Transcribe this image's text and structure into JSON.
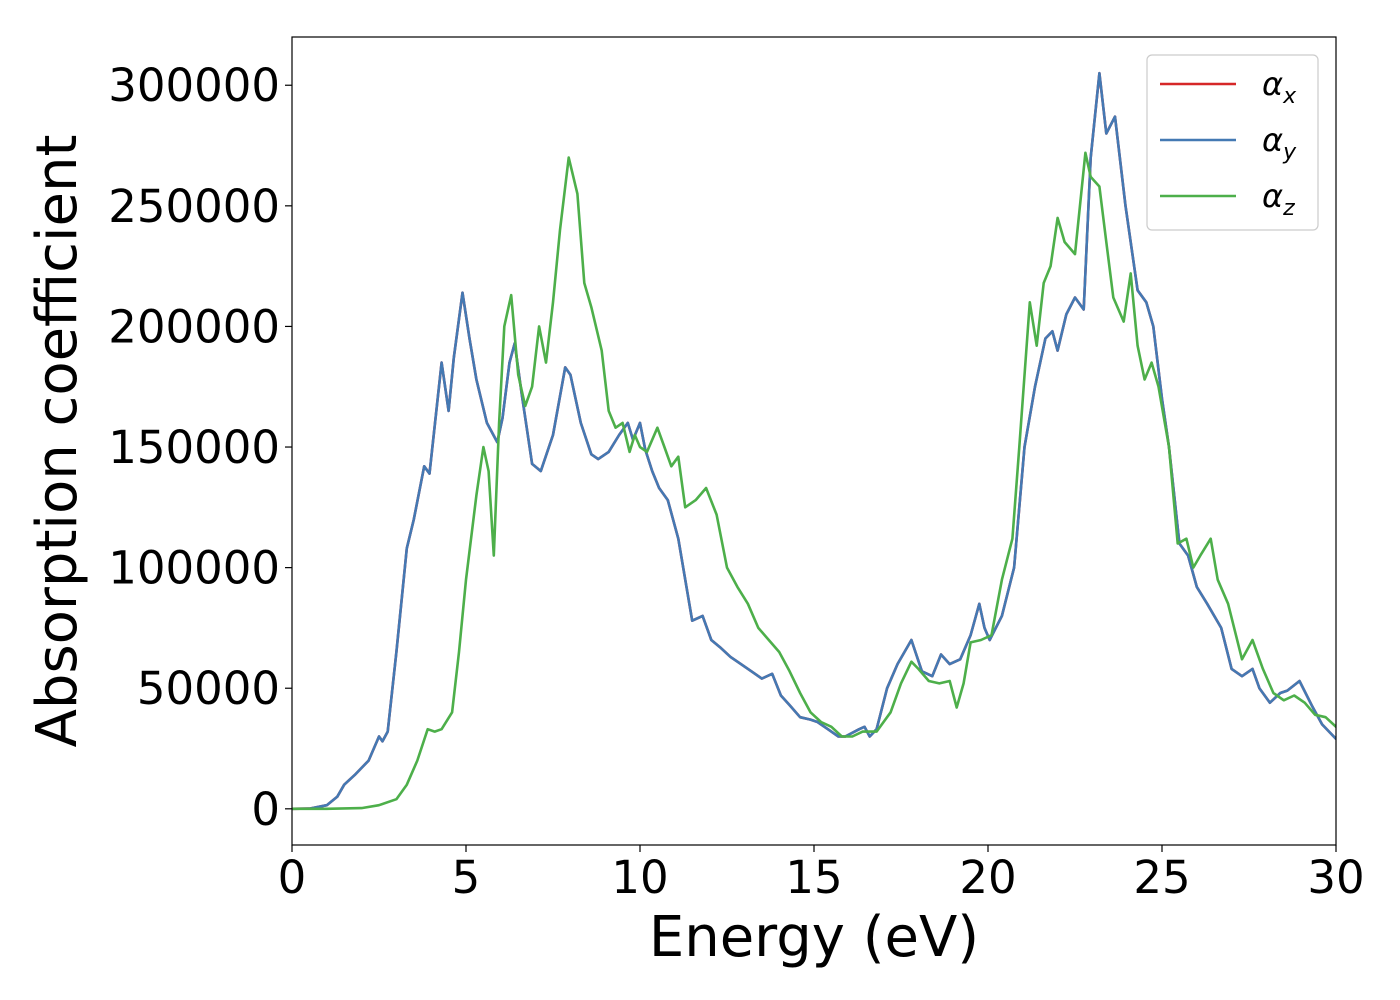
{
  "chart_data": {
    "type": "line",
    "title": "",
    "xlabel": "Energy (eV)",
    "ylabel": "Absorption coefficient",
    "xlim": [
      0,
      30
    ],
    "ylim": [
      -15000,
      320000
    ],
    "xticks": [
      0,
      5,
      10,
      15,
      20,
      25,
      30
    ],
    "yticks": [
      0,
      50000,
      100000,
      150000,
      200000,
      250000,
      300000
    ],
    "xtick_labels": [
      "0",
      "5",
      "10",
      "15",
      "20",
      "25",
      "30"
    ],
    "ytick_labels": [
      "0",
      "50000",
      "100000",
      "150000",
      "200000",
      "250000",
      "300000"
    ],
    "grid": false,
    "legend_position": "top-right",
    "series": [
      {
        "name": "α_x",
        "label_base": "α",
        "label_sub": "x",
        "color": "#d62728",
        "x": [
          0,
          0.5,
          1,
          1.3,
          1.5,
          1.8,
          2.2,
          2.5,
          2.6,
          2.75,
          3,
          3.3,
          3.5,
          3.8,
          3.95,
          4.3,
          4.5,
          4.65,
          4.9,
          5.1,
          5.3,
          5.6,
          5.9,
          6.05,
          6.25,
          6.4,
          6.6,
          6.9,
          7.15,
          7.5,
          7.85,
          8,
          8.3,
          8.6,
          8.8,
          9.1,
          9.4,
          9.65,
          9.8,
          10,
          10.15,
          10.35,
          10.55,
          10.8,
          11.1,
          11.5,
          11.8,
          12.05,
          12.3,
          12.6,
          12.9,
          13.2,
          13.5,
          13.8,
          14.05,
          14.3,
          14.6,
          14.9,
          15.1,
          15.4,
          15.7,
          15.9,
          16.3,
          16.45,
          16.6,
          16.8,
          17.1,
          17.4,
          17.8,
          18.1,
          18.4,
          18.65,
          18.9,
          19.2,
          19.5,
          19.75,
          19.9,
          20.05,
          20.4,
          20.75,
          21.05,
          21.35,
          21.65,
          21.85,
          22,
          22.25,
          22.5,
          22.75,
          22.95,
          23.2,
          23.4,
          23.65,
          23.95,
          24.3,
          24.55,
          24.75,
          25,
          25.2,
          25.5,
          25.75,
          26,
          26.3,
          26.7,
          27,
          27.3,
          27.6,
          27.8,
          28.1,
          28.4,
          28.6,
          28.95,
          29.3,
          29.6,
          30
        ],
        "y": [
          0,
          100,
          1500,
          5000,
          10000,
          14000,
          20000,
          30000,
          28000,
          32000,
          65000,
          108000,
          120000,
          142000,
          139000,
          185000,
          165000,
          187000,
          214000,
          195000,
          178000,
          160000,
          152000,
          162000,
          185000,
          193000,
          172000,
          143000,
          140000,
          155000,
          183000,
          180000,
          160000,
          147000,
          145000,
          148000,
          155000,
          160000,
          153000,
          160000,
          149000,
          140000,
          133000,
          128000,
          112000,
          78000,
          80000,
          70000,
          67000,
          63000,
          60000,
          57000,
          54000,
          56000,
          47000,
          43000,
          38000,
          37000,
          36000,
          33000,
          30000,
          30000,
          33000,
          34000,
          30000,
          33000,
          50000,
          60000,
          70000,
          57000,
          55000,
          64000,
          60000,
          62000,
          72000,
          85000,
          75000,
          70000,
          80000,
          100000,
          150000,
          175000,
          195000,
          198000,
          190000,
          205000,
          212000,
          207000,
          270000,
          305000,
          280000,
          287000,
          250000,
          215000,
          210000,
          200000,
          170000,
          150000,
          110000,
          105000,
          92000,
          85000,
          75000,
          58000,
          55000,
          58000,
          50000,
          44000,
          48000,
          49000,
          53000,
          43000,
          35000,
          29000
        ]
      },
      {
        "name": "α_y",
        "label_base": "α",
        "label_sub": "y",
        "color": "#4479b3",
        "x": [
          0,
          0.5,
          1,
          1.3,
          1.5,
          1.8,
          2.2,
          2.5,
          2.6,
          2.75,
          3,
          3.3,
          3.5,
          3.8,
          3.95,
          4.3,
          4.5,
          4.65,
          4.9,
          5.1,
          5.3,
          5.6,
          5.9,
          6.05,
          6.25,
          6.4,
          6.6,
          6.9,
          7.15,
          7.5,
          7.85,
          8,
          8.3,
          8.6,
          8.8,
          9.1,
          9.4,
          9.65,
          9.8,
          10,
          10.15,
          10.35,
          10.55,
          10.8,
          11.1,
          11.5,
          11.8,
          12.05,
          12.3,
          12.6,
          12.9,
          13.2,
          13.5,
          13.8,
          14.05,
          14.3,
          14.6,
          14.9,
          15.1,
          15.4,
          15.7,
          15.9,
          16.3,
          16.45,
          16.6,
          16.8,
          17.1,
          17.4,
          17.8,
          18.1,
          18.4,
          18.65,
          18.9,
          19.2,
          19.5,
          19.75,
          19.9,
          20.05,
          20.4,
          20.75,
          21.05,
          21.35,
          21.65,
          21.85,
          22,
          22.25,
          22.5,
          22.75,
          22.95,
          23.2,
          23.4,
          23.65,
          23.95,
          24.3,
          24.55,
          24.75,
          25,
          25.2,
          25.5,
          25.75,
          26,
          26.3,
          26.7,
          27,
          27.3,
          27.6,
          27.8,
          28.1,
          28.4,
          28.6,
          28.95,
          29.3,
          29.6,
          30
        ],
        "y": [
          0,
          100,
          1500,
          5000,
          10000,
          14000,
          20000,
          30000,
          28000,
          32000,
          65000,
          108000,
          120000,
          142000,
          139000,
          185000,
          165000,
          187000,
          214000,
          195000,
          178000,
          160000,
          152000,
          162000,
          185000,
          193000,
          172000,
          143000,
          140000,
          155000,
          183000,
          180000,
          160000,
          147000,
          145000,
          148000,
          155000,
          160000,
          153000,
          160000,
          149000,
          140000,
          133000,
          128000,
          112000,
          78000,
          80000,
          70000,
          67000,
          63000,
          60000,
          57000,
          54000,
          56000,
          47000,
          43000,
          38000,
          37000,
          36000,
          33000,
          30000,
          30000,
          33000,
          34000,
          30000,
          33000,
          50000,
          60000,
          70000,
          57000,
          55000,
          64000,
          60000,
          62000,
          72000,
          85000,
          75000,
          70000,
          80000,
          100000,
          150000,
          175000,
          195000,
          198000,
          190000,
          205000,
          212000,
          207000,
          270000,
          305000,
          280000,
          287000,
          250000,
          215000,
          210000,
          200000,
          170000,
          150000,
          110000,
          105000,
          92000,
          85000,
          75000,
          58000,
          55000,
          58000,
          50000,
          44000,
          48000,
          49000,
          53000,
          43000,
          35000,
          29000
        ]
      },
      {
        "name": "α_z",
        "label_base": "α",
        "label_sub": "z",
        "color": "#4daf4a",
        "x": [
          0,
          1,
          2,
          2.5,
          3,
          3.3,
          3.6,
          3.9,
          4.1,
          4.3,
          4.6,
          4.8,
          5,
          5.3,
          5.5,
          5.65,
          5.8,
          5.95,
          6.1,
          6.3,
          6.5,
          6.7,
          6.9,
          7.1,
          7.3,
          7.5,
          7.7,
          7.95,
          8.2,
          8.4,
          8.6,
          8.9,
          9.1,
          9.3,
          9.5,
          9.7,
          9.85,
          10,
          10.2,
          10.5,
          10.7,
          10.9,
          11.1,
          11.3,
          11.6,
          11.9,
          12.2,
          12.5,
          12.8,
          13.1,
          13.4,
          13.7,
          14,
          14.3,
          14.6,
          14.9,
          15.2,
          15.5,
          15.8,
          16.1,
          16.4,
          16.8,
          17.2,
          17.5,
          17.8,
          18,
          18.3,
          18.6,
          18.9,
          19.1,
          19.3,
          19.5,
          19.8,
          20.1,
          20.4,
          20.7,
          20.9,
          21.2,
          21.4,
          21.6,
          21.8,
          22,
          22.2,
          22.5,
          22.8,
          22.95,
          23.2,
          23.4,
          23.6,
          23.9,
          24.1,
          24.3,
          24.5,
          24.7,
          24.9,
          25.2,
          25.45,
          25.7,
          25.9,
          26.1,
          26.4,
          26.6,
          26.9,
          27.3,
          27.6,
          27.9,
          28.2,
          28.5,
          28.8,
          29.1,
          29.4,
          29.7,
          30
        ],
        "y": [
          0,
          0,
          300,
          1500,
          4000,
          10000,
          20000,
          33000,
          32000,
          33000,
          40000,
          65000,
          95000,
          130000,
          150000,
          140000,
          105000,
          160000,
          200000,
          213000,
          180000,
          167000,
          175000,
          200000,
          185000,
          210000,
          240000,
          270000,
          255000,
          218000,
          208000,
          190000,
          165000,
          158000,
          160000,
          148000,
          155000,
          150000,
          148000,
          158000,
          150000,
          142000,
          146000,
          125000,
          128000,
          133000,
          122000,
          100000,
          92000,
          85000,
          75000,
          70000,
          65000,
          57000,
          48000,
          40000,
          36000,
          34000,
          30000,
          30000,
          32000,
          32000,
          40000,
          52000,
          61000,
          58000,
          53000,
          52000,
          53000,
          42000,
          52000,
          69000,
          70000,
          72000,
          95000,
          112000,
          150000,
          210000,
          192000,
          218000,
          225000,
          245000,
          235000,
          230000,
          272000,
          262000,
          258000,
          235000,
          212000,
          202000,
          222000,
          192000,
          178000,
          185000,
          175000,
          150000,
          110000,
          112000,
          100000,
          105000,
          112000,
          95000,
          85000,
          62000,
          70000,
          58000,
          48000,
          45000,
          47000,
          44000,
          39000,
          38000,
          34000
        ]
      }
    ]
  }
}
